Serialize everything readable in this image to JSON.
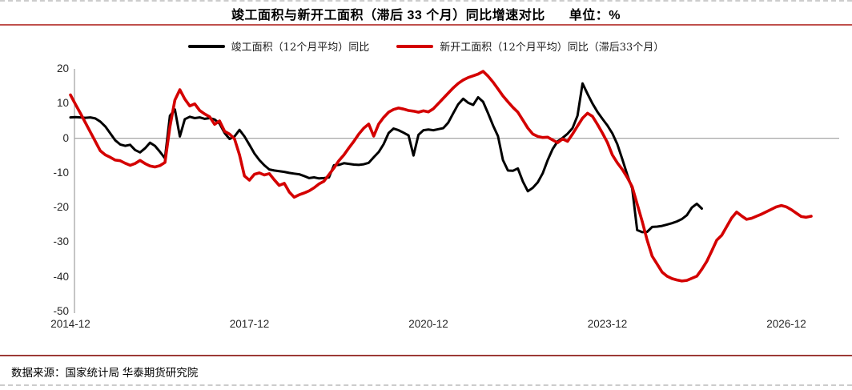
{
  "page": {
    "title": "竣工面积与新开工面积（滞后 33 个月）同比增速对比",
    "unit_label": "单位：%",
    "source_text": "数据来源：国家统计局  华泰期货研究院"
  },
  "style_colors": {
    "completed_line": "#000000",
    "newstart_line": "#d40000",
    "title_rule": "#c0504d",
    "footer_rule": "#9c3a36",
    "axis_gray": "#a6a6a6"
  },
  "chart_data": {
    "type": "line",
    "title": "竣工面积与新开工面积（滞后 33 个月）同比增速对比",
    "unit": "%",
    "frequency": "monthly",
    "start_month": "2014-12",
    "grid": "zero-line-only",
    "legend_position": "top-center",
    "x_axis": {
      "tick_labels": [
        "2014-12",
        "2017-12",
        "2020-12",
        "2023-12",
        "2026-12"
      ],
      "tick_month_index": [
        0,
        36,
        72,
        108,
        144
      ]
    },
    "y_axis": {
      "ticks": [
        20,
        10,
        0,
        -10,
        -20,
        -30,
        -40,
        -50
      ],
      "range": [
        -50,
        20
      ]
    },
    "series": [
      {
        "name": "竣工面积（12个月平均）同比",
        "color": "#000000",
        "start_month_index": 0,
        "values": [
          6.0,
          6.1,
          6.0,
          5.9,
          6.0,
          5.7,
          4.8,
          3.4,
          1.4,
          -0.6,
          -1.8,
          -2.2,
          -1.9,
          -3.4,
          -4.1,
          -2.9,
          -1.3,
          -2.2,
          -3.9,
          -5.8,
          6.5,
          8.3,
          0.5,
          5.5,
          6.2,
          5.8,
          6.0,
          5.6,
          5.8,
          5.4,
          4.2,
          1.5,
          -0.2,
          0.5,
          2.4,
          0.5,
          -1.9,
          -4.4,
          -6.3,
          -7.8,
          -9.0,
          -9.3,
          -9.5,
          -9.7,
          -10.0,
          -10.2,
          -10.4,
          -10.9,
          -11.5,
          -11.3,
          -11.6,
          -11.5,
          -11.3,
          -7.8,
          -7.7,
          -7.2,
          -7.4,
          -7.6,
          -7.7,
          -7.5,
          -7.1,
          -5.5,
          -4.0,
          -1.7,
          1.5,
          2.8,
          2.3,
          1.6,
          0.8,
          -5.0,
          1.0,
          2.3,
          2.5,
          2.3,
          2.6,
          2.9,
          4.5,
          7.2,
          9.8,
          11.4,
          10.2,
          9.6,
          11.8,
          10.5,
          7.2,
          3.7,
          0.6,
          -6.3,
          -9.3,
          -9.4,
          -8.7,
          -12.5,
          -15.3,
          -14.3,
          -12.7,
          -10.1,
          -6.3,
          -3.1,
          -0.9,
          0.1,
          1.3,
          2.9,
          6.5,
          15.8,
          12.8,
          10.0,
          7.6,
          5.6,
          3.7,
          1.4,
          -1.7,
          -6.0,
          -10.5,
          -14.5,
          -26.5,
          -27.1,
          -27.0,
          -25.6,
          -25.5,
          -25.3,
          -24.9,
          -24.5,
          -24.0,
          -23.3,
          -22.2,
          -20.0,
          -18.9,
          -20.3
        ]
      },
      {
        "name": "新开工面积（12个月平均）同比（滞后33个月）",
        "color": "#d40000",
        "start_month_index": 0,
        "values": [
          12.5,
          9.8,
          7.2,
          4.5,
          1.8,
          -0.9,
          -3.6,
          -4.8,
          -5.5,
          -6.3,
          -6.5,
          -7.2,
          -7.8,
          -7.3,
          -6.4,
          -7.3,
          -8.0,
          -8.3,
          -7.9,
          -7.0,
          3.3,
          11.0,
          14.0,
          11.3,
          9.3,
          9.9,
          8.0,
          7.0,
          6.2,
          4.0,
          5.0,
          2.0,
          1.2,
          -0.2,
          -4.8,
          -10.9,
          -12.1,
          -10.4,
          -10.0,
          -10.6,
          -10.2,
          -12.0,
          -13.6,
          -13.0,
          -15.5,
          -17.0,
          -16.3,
          -15.8,
          -15.2,
          -14.3,
          -13.2,
          -12.4,
          -10.5,
          -8.6,
          -6.5,
          -4.8,
          -2.8,
          -0.9,
          1.2,
          2.9,
          4.1,
          0.6,
          4.1,
          6.0,
          7.5,
          8.3,
          8.7,
          8.4,
          8.0,
          7.8,
          7.5,
          7.9,
          7.6,
          8.5,
          10.0,
          11.5,
          13.0,
          14.5,
          15.8,
          16.8,
          17.5,
          18.0,
          18.5,
          19.3,
          17.9,
          16.2,
          14.2,
          12.2,
          10.5,
          8.9,
          7.5,
          5.2,
          2.9,
          1.2,
          0.5,
          0.2,
          0.3,
          -0.5,
          -1.3,
          -0.2,
          -0.9,
          1.2,
          3.5,
          5.8,
          7.2,
          6.3,
          4.0,
          1.5,
          -1.2,
          -4.8,
          -7.1,
          -9.0,
          -11.3,
          -14.0,
          -19.0,
          -24.0,
          -29.4,
          -34.0,
          -36.3,
          -38.6,
          -39.8,
          -40.5,
          -40.9,
          -41.2,
          -41.0,
          -40.4,
          -39.8,
          -37.8,
          -35.5,
          -32.5,
          -29.4,
          -28.0,
          -25.5,
          -23.0,
          -21.3,
          -22.4,
          -23.4,
          -23.1,
          -22.5,
          -21.9,
          -21.2,
          -20.5,
          -19.8,
          -19.4,
          -19.8,
          -20.6,
          -21.6,
          -22.6,
          -22.8,
          -22.5
        ]
      }
    ]
  }
}
